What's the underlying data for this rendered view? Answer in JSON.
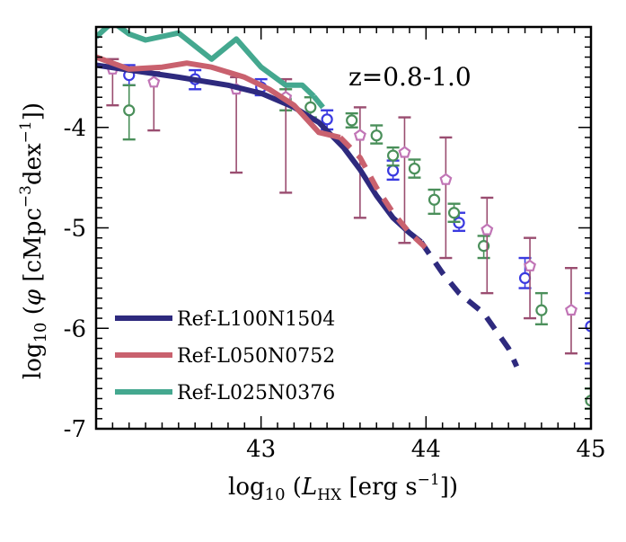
{
  "chart_data": {
    "type": "line",
    "title": "",
    "annotation": "z=0.8-1.0",
    "xlabel": "log₁₀ (L_HX [erg s⁻¹])",
    "xlabel_parts": {
      "prefix": "log",
      "sub": "10",
      "open": " (",
      "var": "L",
      "var_sub": "HX",
      "units": " [erg s",
      "exp": "−1",
      "close": "])"
    },
    "ylabel": "log₁₀ (φ [cMpc⁻³dex⁻¹])",
    "ylabel_parts": {
      "prefix": "log",
      "sub": "10",
      "open": " (",
      "var": "φ",
      "units": " [cMpc",
      "exp1": "−3",
      "mid": "dex",
      "exp2": "−1",
      "close": "])"
    },
    "xlim": [
      42.0,
      45.0
    ],
    "ylim": [
      -7.0,
      -3.0
    ],
    "xticks": [
      {
        "v": 43,
        "label": "43"
      },
      {
        "v": 44,
        "label": "44"
      },
      {
        "v": 45,
        "label": "45"
      }
    ],
    "yticks": [
      {
        "v": -7,
        "label": "-7"
      },
      {
        "v": -6,
        "label": "-6"
      },
      {
        "v": -5,
        "label": "-5"
      },
      {
        "v": -4,
        "label": "-4"
      }
    ],
    "legend_position": "lower-left",
    "series": [
      {
        "name": "Ref-L100N1504",
        "color": "#2e2a7e",
        "solid": [
          [
            42.0,
            -3.38
          ],
          [
            42.5,
            -3.5
          ],
          [
            42.8,
            -3.58
          ],
          [
            43.0,
            -3.66
          ],
          [
            43.2,
            -3.8
          ],
          [
            43.35,
            -3.95
          ],
          [
            43.5,
            -4.2
          ],
          [
            43.6,
            -4.42
          ],
          [
            43.7,
            -4.68
          ],
          [
            43.8,
            -4.9
          ],
          [
            43.9,
            -5.05
          ],
          [
            43.97,
            -5.14
          ]
        ],
        "dashed": [
          [
            43.97,
            -5.14
          ],
          [
            44.1,
            -5.45
          ],
          [
            44.2,
            -5.65
          ],
          [
            44.35,
            -5.85
          ],
          [
            44.5,
            -6.2
          ],
          [
            44.55,
            -6.38
          ]
        ]
      },
      {
        "name": "Ref-L050N0752",
        "color": "#c9616e",
        "solid": [
          [
            42.0,
            -3.3
          ],
          [
            42.2,
            -3.42
          ],
          [
            42.4,
            -3.4
          ],
          [
            42.55,
            -3.36
          ],
          [
            42.7,
            -3.4
          ],
          [
            42.9,
            -3.5
          ],
          [
            43.05,
            -3.62
          ],
          [
            43.2,
            -3.78
          ],
          [
            43.35,
            -4.05
          ],
          [
            43.48,
            -4.1
          ]
        ],
        "dashed": [
          [
            43.48,
            -4.1
          ],
          [
            43.6,
            -4.3
          ],
          [
            43.7,
            -4.6
          ],
          [
            43.8,
            -4.85
          ],
          [
            43.9,
            -5.05
          ],
          [
            44.0,
            -5.2
          ]
        ]
      },
      {
        "name": "Ref-L025N0376",
        "color": "#44a88f",
        "solid": [
          [
            42.0,
            -3.1
          ],
          [
            42.1,
            -2.95
          ],
          [
            42.2,
            -3.07
          ],
          [
            42.3,
            -3.13
          ],
          [
            42.5,
            -3.06
          ],
          [
            42.7,
            -3.32
          ],
          [
            42.85,
            -3.12
          ],
          [
            43.0,
            -3.4
          ],
          [
            43.15,
            -3.58
          ],
          [
            43.25,
            -3.58
          ],
          [
            43.32,
            -3.69
          ]
        ],
        "dashed": [
          [
            43.32,
            -3.69
          ],
          [
            43.4,
            -3.85
          ]
        ]
      }
    ],
    "observations": [
      {
        "name": "observations-blue",
        "color": "#3a3ae0",
        "marker": "circle",
        "points": [
          {
            "x": 42.2,
            "y": -3.48,
            "lo": -3.58,
            "hi": -3.38
          },
          {
            "x": 42.6,
            "y": -3.52,
            "lo": -3.62,
            "hi": -3.43
          },
          {
            "x": 43.0,
            "y": -3.6,
            "lo": -3.68,
            "hi": -3.52
          },
          {
            "x": 43.4,
            "y": -3.92,
            "lo": -4.02,
            "hi": -3.83
          },
          {
            "x": 43.8,
            "y": -4.43,
            "lo": -4.52,
            "hi": -4.33
          },
          {
            "x": 44.2,
            "y": -4.95,
            "lo": -5.03,
            "hi": -4.85
          },
          {
            "x": 44.6,
            "y": -5.5,
            "lo": -5.6,
            "hi": -5.3
          },
          {
            "x": 45.0,
            "y": -5.98,
            "lo": -6.35,
            "hi": -5.65
          }
        ]
      },
      {
        "name": "observations-green",
        "color": "#4a8f5a",
        "marker": "circle",
        "points": [
          {
            "x": 42.2,
            "y": -3.83,
            "lo": -4.12,
            "hi": -3.58
          },
          {
            "x": 43.15,
            "y": -3.72,
            "lo": -3.83,
            "hi": -3.62
          },
          {
            "x": 43.3,
            "y": -3.8,
            "lo": -3.9,
            "hi": -3.7
          },
          {
            "x": 43.55,
            "y": -3.93,
            "lo": -4.0,
            "hi": -3.86
          },
          {
            "x": 43.7,
            "y": -4.08,
            "lo": -4.16,
            "hi": -3.98
          },
          {
            "x": 43.8,
            "y": -4.28,
            "lo": -4.38,
            "hi": -4.2
          },
          {
            "x": 43.93,
            "y": -4.41,
            "lo": -4.5,
            "hi": -4.32
          },
          {
            "x": 44.05,
            "y": -4.72,
            "lo": -4.86,
            "hi": -4.62
          },
          {
            "x": 44.17,
            "y": -4.85,
            "lo": -4.94,
            "hi": -4.76
          },
          {
            "x": 44.35,
            "y": -5.18,
            "lo": -5.3,
            "hi": -5.08
          },
          {
            "x": 44.7,
            "y": -5.82,
            "lo": -5.96,
            "hi": -5.65
          },
          {
            "x": 45.0,
            "y": -6.72,
            "lo": -6.8,
            "hi": -6.6
          }
        ]
      },
      {
        "name": "observations-pink",
        "color": "#c175b6",
        "marker": "pentagon",
        "errcolor": "#9a4d70",
        "points": [
          {
            "x": 42.1,
            "y": -3.42,
            "lo": -3.78,
            "hi": -3.32
          },
          {
            "x": 42.35,
            "y": -3.55,
            "lo": -4.03,
            "hi": -3.45
          },
          {
            "x": 42.85,
            "y": -3.62,
            "lo": -4.45,
            "hi": -3.5
          },
          {
            "x": 43.15,
            "y": -3.7,
            "lo": -4.65,
            "hi": -3.52
          },
          {
            "x": 43.6,
            "y": -4.08,
            "lo": -4.9,
            "hi": -3.8
          },
          {
            "x": 43.87,
            "y": -4.25,
            "lo": -5.15,
            "hi": -3.9
          },
          {
            "x": 44.12,
            "y": -4.52,
            "lo": -5.3,
            "hi": -4.1
          },
          {
            "x": 44.37,
            "y": -5.02,
            "lo": -5.65,
            "hi": -4.7
          },
          {
            "x": 44.63,
            "y": -5.38,
            "lo": -5.9,
            "hi": -5.1
          },
          {
            "x": 44.88,
            "y": -5.82,
            "lo": -6.25,
            "hi": -5.4
          }
        ]
      }
    ]
  }
}
